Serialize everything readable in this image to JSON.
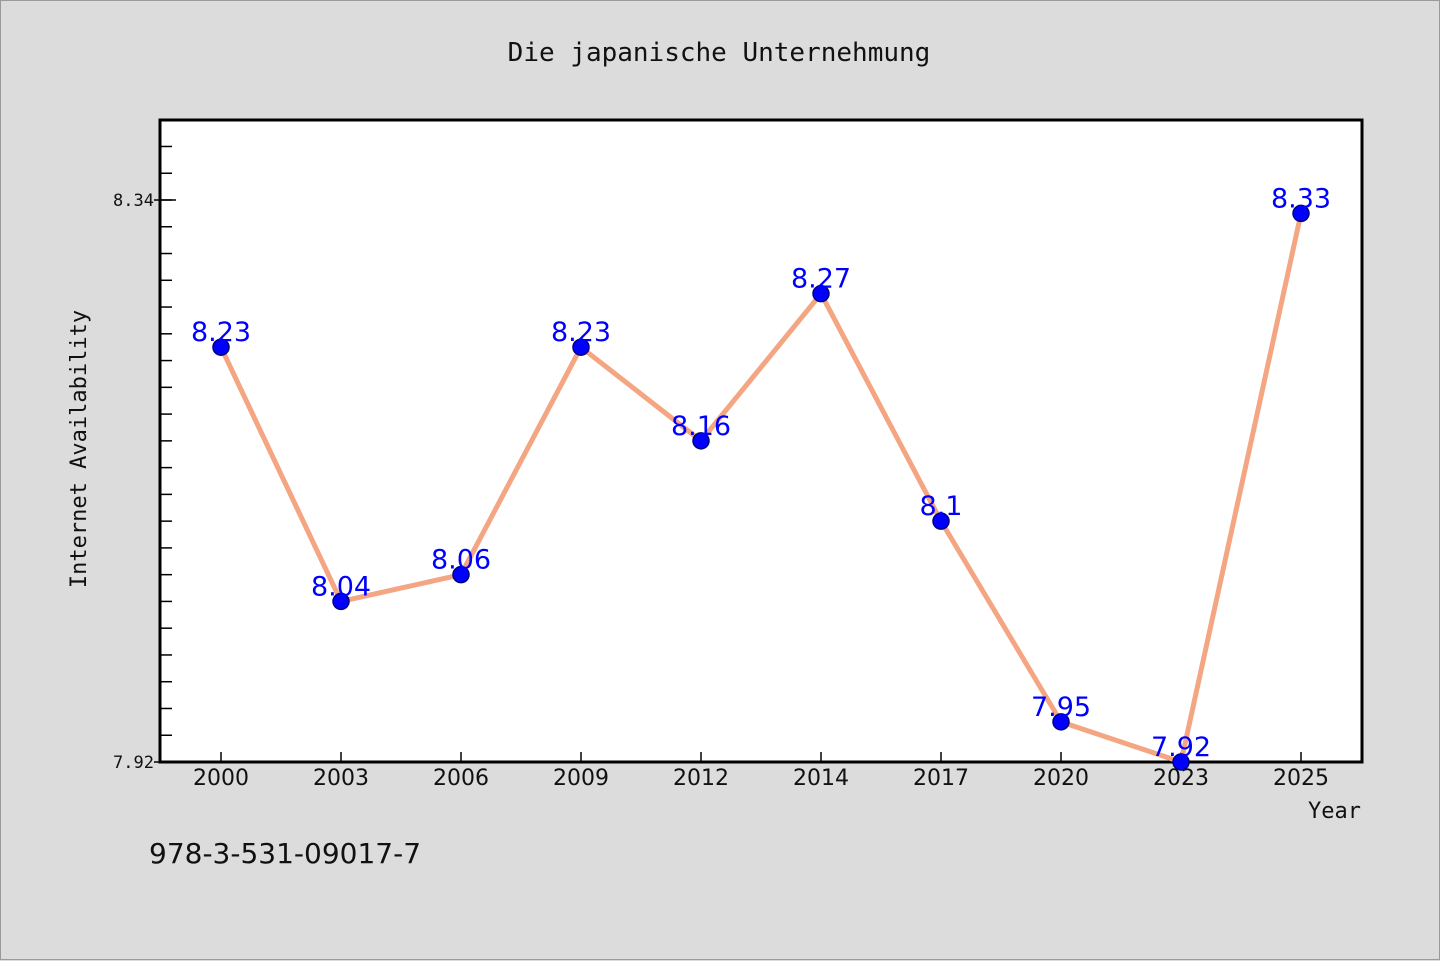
{
  "chart_data": {
    "type": "line",
    "title": "Die japanische Unternehmung",
    "xlabel": "Year",
    "ylabel": "Internet Availability",
    "categories": [
      "2000",
      "2003",
      "2006",
      "2009",
      "2012",
      "2014",
      "2017",
      "2020",
      "2023",
      "2025"
    ],
    "series": [
      {
        "values": [
          8.23,
          8.04,
          8.06,
          8.23,
          8.16,
          8.27,
          8.1,
          7.95,
          7.92,
          8.33
        ],
        "labels": [
          "8.23",
          "8.04",
          "8.06",
          "8.23",
          "8.16",
          "8.27",
          "8.1",
          "7.95",
          "7.92",
          "8.33"
        ]
      }
    ],
    "ylim": [
      7.92,
      8.4
    ],
    "yticks": [
      7.92,
      8.34
    ],
    "ytick_labels": [
      "7.92",
      "8.34"
    ],
    "grid": false,
    "legend": "none",
    "annotation": "978-3-531-09017-7",
    "colors": {
      "line": "#f4a582",
      "marker_fill": "#0000ff",
      "marker_stroke": "#000080",
      "data_label": "#0000ff",
      "plot_background": "#ffffff",
      "figure_background": "#dcdcdc"
    }
  }
}
